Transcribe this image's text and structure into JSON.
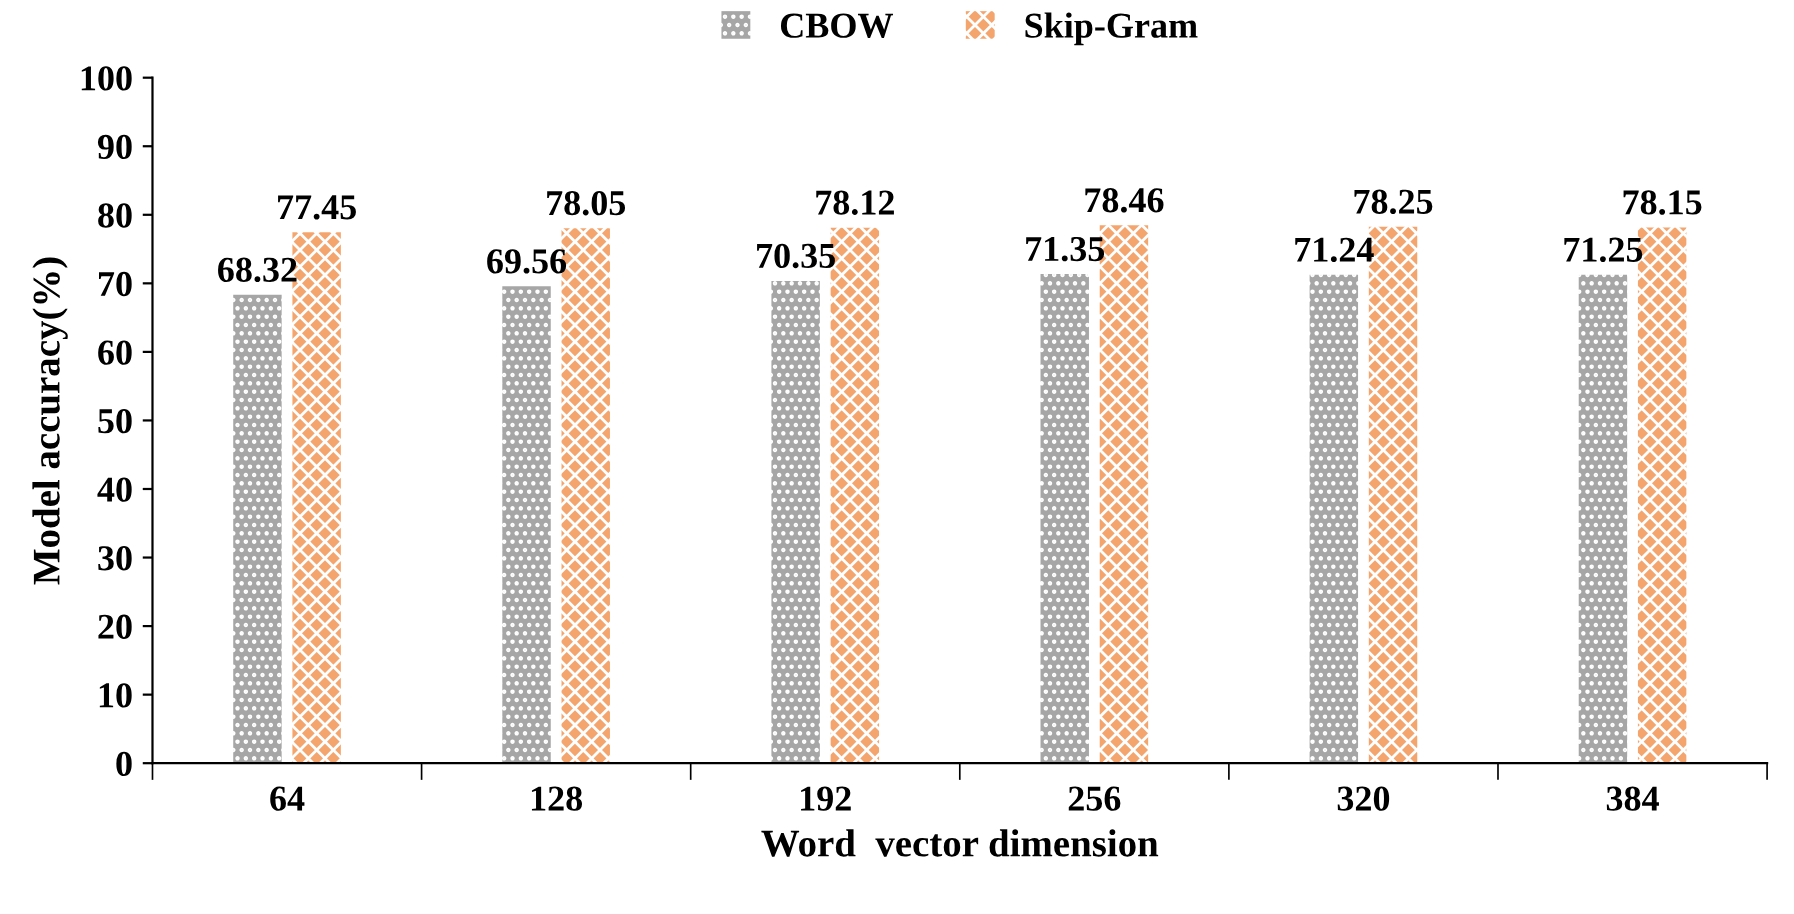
{
  "chart_data": {
    "type": "bar",
    "xlabel": "Word  vector dimension",
    "ylabel": "Model accuracy(%)",
    "categories": [
      "64",
      "128",
      "192",
      "256",
      "320",
      "384"
    ],
    "series": [
      {
        "name": "CBOW",
        "color": "#a6a6a6",
        "values": [
          68.32,
          69.56,
          70.35,
          71.35,
          71.24,
          71.25
        ]
      },
      {
        "name": "Skip-Gram",
        "color": "#f4a56e",
        "values": [
          77.45,
          78.05,
          78.12,
          78.46,
          78.25,
          78.15
        ]
      }
    ],
    "ylim": [
      0,
      100
    ],
    "yticks": [
      0,
      10,
      20,
      30,
      40,
      50,
      60,
      70,
      80,
      90,
      100
    ],
    "grid": false,
    "legend": "top",
    "data_labels": true
  }
}
